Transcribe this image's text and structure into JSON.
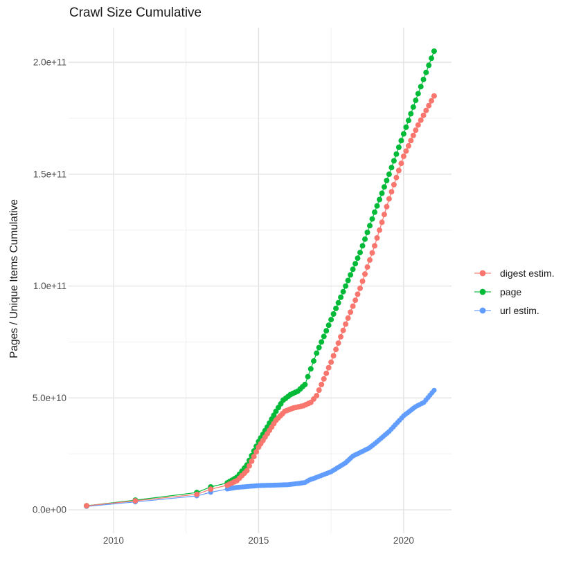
{
  "chart_data": {
    "type": "line",
    "title": "Crawl Size Cumulative",
    "xlabel": "",
    "ylabel": "Pages / Unique Items Cumulative",
    "legend_position": "right",
    "grid": true,
    "background": "#ffffff",
    "grid_major_color": "#e3e3e3",
    "grid_minor_color": "#f0f0f0",
    "tick_label_color": "#4d4d4d",
    "text_color": "#1a1a1a",
    "x_ticks": {
      "labels": [
        "2010",
        "2015",
        "2020"
      ],
      "values": [
        2010,
        2015,
        2020
      ],
      "minor": [
        2012.5,
        2017.5
      ]
    },
    "y_ticks": {
      "labels": [
        "0.0e+00",
        "5.0e+10",
        "1.0e+11",
        "1.5e+11",
        "2.0e+11"
      ],
      "values_e9": [
        0,
        50,
        100,
        150,
        200
      ],
      "minor_e9": [
        25,
        75,
        125,
        175
      ]
    },
    "x_range": [
      2008.45,
      2021.65
    ],
    "y_range_e9": [
      -10.5,
      215.5
    ],
    "series": [
      {
        "name": "digest estim.",
        "color": "#F8766D",
        "marker_radius": 4,
        "sparse_until": 2013.9,
        "dense_step_years": 0.085,
        "points_year_value_e9": [
          [
            2009.07,
            1.8
          ],
          [
            2010.75,
            4.0
          ],
          [
            2012.87,
            6.9
          ],
          [
            2013.35,
            9.2
          ],
          [
            2013.92,
            11
          ],
          [
            2014.25,
            13
          ],
          [
            2014.6,
            17.5
          ],
          [
            2015.0,
            28
          ],
          [
            2015.3,
            34
          ],
          [
            2015.6,
            40
          ],
          [
            2015.9,
            44
          ],
          [
            2016.2,
            45.5
          ],
          [
            2016.55,
            46.5
          ],
          [
            2016.8,
            48
          ],
          [
            2017.0,
            51
          ],
          [
            2017.5,
            66
          ],
          [
            2018.0,
            83
          ],
          [
            2018.5,
            99
          ],
          [
            2019.0,
            118
          ],
          [
            2019.5,
            139
          ],
          [
            2020.0,
            158
          ],
          [
            2020.5,
            172
          ],
          [
            2021.05,
            185
          ]
        ]
      },
      {
        "name": "page",
        "color": "#00BA38",
        "marker_radius": 4,
        "sparse_until": 2013.9,
        "dense_step_years": 0.085,
        "points_year_value_e9": [
          [
            2009.07,
            1.8
          ],
          [
            2010.75,
            4.3
          ],
          [
            2012.87,
            7.7
          ],
          [
            2013.35,
            10.2
          ],
          [
            2013.92,
            12
          ],
          [
            2014.25,
            14.5
          ],
          [
            2014.6,
            20
          ],
          [
            2015.0,
            30.5
          ],
          [
            2015.3,
            37
          ],
          [
            2015.6,
            44
          ],
          [
            2015.85,
            49
          ],
          [
            2016.1,
            51.5
          ],
          [
            2016.35,
            53
          ],
          [
            2016.6,
            56
          ],
          [
            2016.8,
            63
          ],
          [
            2017.0,
            70
          ],
          [
            2017.5,
            85
          ],
          [
            2018.0,
            100
          ],
          [
            2018.5,
            115
          ],
          [
            2019.0,
            133
          ],
          [
            2019.5,
            150
          ],
          [
            2020.0,
            168
          ],
          [
            2020.5,
            186
          ],
          [
            2021.05,
            205
          ]
        ]
      },
      {
        "name": "url estim.",
        "color": "#619CFF",
        "marker_radius": 3.6,
        "sparse_until": 2013.9,
        "dense_step_years": 0.07,
        "points_year_value_e9": [
          [
            2009.07,
            1.5
          ],
          [
            2010.75,
            3.5
          ],
          [
            2012.87,
            6.2
          ],
          [
            2013.35,
            7.8
          ],
          [
            2013.92,
            9.3
          ],
          [
            2014.25,
            10.0
          ],
          [
            2015.0,
            10.8
          ],
          [
            2015.5,
            11.0
          ],
          [
            2016.0,
            11.2
          ],
          [
            2016.4,
            11.8
          ],
          [
            2016.6,
            12.2
          ],
          [
            2016.75,
            13.3
          ],
          [
            2017.0,
            14.5
          ],
          [
            2017.5,
            17.0
          ],
          [
            2018.0,
            21.0
          ],
          [
            2018.25,
            24.0
          ],
          [
            2018.8,
            27.5
          ],
          [
            2019.0,
            29.5
          ],
          [
            2019.5,
            35.0
          ],
          [
            2020.0,
            42.0
          ],
          [
            2020.4,
            46.0
          ],
          [
            2020.7,
            48.0
          ],
          [
            2021.05,
            53.4
          ]
        ]
      }
    ]
  }
}
